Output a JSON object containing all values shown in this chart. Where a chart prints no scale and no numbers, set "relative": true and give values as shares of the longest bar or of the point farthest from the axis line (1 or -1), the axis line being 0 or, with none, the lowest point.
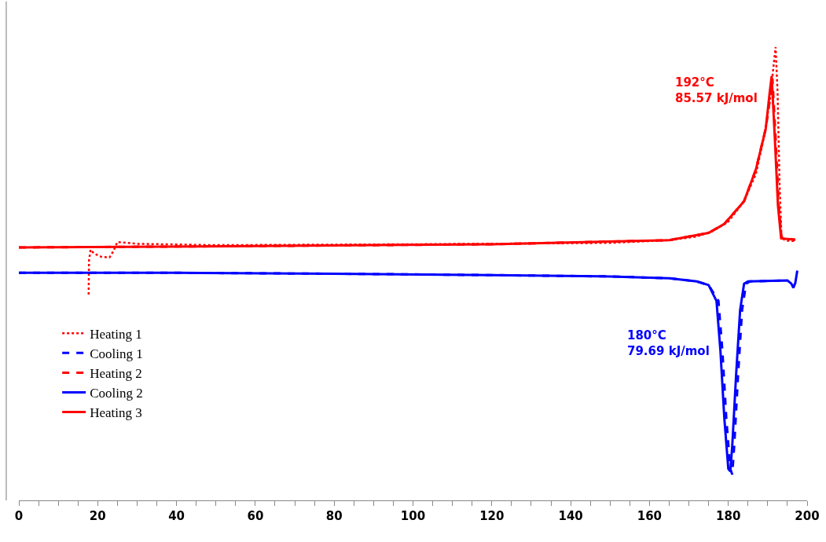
{
  "chart_data": {
    "type": "line",
    "relative": true,
    "xlim": [
      0,
      200
    ],
    "xticks": [
      0,
      {
        "value": 5,
        "label": null
      },
      {
        "value": 10,
        "label": null
      },
      {
        "value": 15,
        "label": null
      },
      20,
      {
        "value": 25,
        "label": null
      },
      {
        "value": 30,
        "label": null
      },
      {
        "value": 35,
        "label": null
      },
      40,
      {
        "value": 45,
        "label": null
      },
      {
        "value": 50,
        "label": null
      },
      {
        "value": 55,
        "label": null
      },
      60,
      {
        "value": 65,
        "label": null
      },
      {
        "value": 70,
        "label": null
      },
      {
        "value": 75,
        "label": null
      },
      80,
      {
        "value": 85,
        "label": null
      },
      {
        "value": 90,
        "label": null
      },
      {
        "value": 95,
        "label": null
      },
      100,
      {
        "value": 105,
        "label": null
      },
      {
        "value": 110,
        "label": null
      },
      {
        "value": 115,
        "label": null
      },
      120,
      {
        "value": 125,
        "label": null
      },
      {
        "value": 130,
        "label": null
      },
      {
        "value": 135,
        "label": null
      },
      140,
      {
        "value": 145,
        "label": null
      },
      {
        "value": 150,
        "label": null
      },
      {
        "value": 155,
        "label": null
      },
      160,
      {
        "value": 165,
        "label": null
      },
      {
        "value": 170,
        "label": null
      },
      {
        "value": 175,
        "label": null
      },
      180,
      {
        "value": 185,
        "label": null
      },
      {
        "value": 190,
        "label": null
      },
      {
        "value": 195,
        "label": null
      },
      200
    ],
    "tick_labels": "x",
    "grid": false,
    "legend": "bottom left",
    "marker": "none",
    "series": [
      {
        "name": "Heating 1",
        "color": "#ff0000",
        "line_style": "dotted",
        "x": [
          17.7,
          17.8,
          18.2,
          19,
          21,
          23,
          24,
          25,
          30,
          50,
          100,
          150,
          165,
          172,
          176,
          180,
          184,
          187,
          189,
          190.5,
          191.5,
          192,
          192.5,
          193,
          193.5,
          194.5,
          197
        ],
        "values": [
          0.454,
          0.53,
          0.553,
          0.545,
          0.537,
          0.536,
          0.55,
          0.57,
          0.566,
          0.563,
          0.565,
          0.568,
          0.574,
          0.582,
          0.594,
          0.615,
          0.66,
          0.72,
          0.8,
          0.88,
          0.96,
          1.0,
          0.9,
          0.7,
          0.58,
          0.573,
          0.572
        ]
      },
      {
        "name": "Cooling 1",
        "color": "#0000ff",
        "line_style": "dashed",
        "x": [
          0,
          40,
          80,
          120,
          150,
          165,
          172,
          175,
          177.5,
          178.5,
          179.5,
          180.5,
          181,
          181.5,
          182.5,
          183.5,
          184.5,
          185.5,
          195
        ],
        "values": [
          0.502,
          0.502,
          0.5,
          0.497,
          0.494,
          0.49,
          0.483,
          0.475,
          0.44,
          0.33,
          0.18,
          0.07,
          0.057,
          0.12,
          0.28,
          0.42,
          0.478,
          0.483,
          0.485
        ]
      },
      {
        "name": "Heating 2",
        "color": "#ff0000",
        "line_style": "dashed",
        "x": [
          0,
          60,
          120,
          165,
          175,
          179,
          184,
          187,
          189.5,
          190.8,
          191.2,
          192,
          192.8,
          193.5,
          197
        ],
        "values": [
          0.558,
          0.561,
          0.565,
          0.574,
          0.59,
          0.61,
          0.66,
          0.73,
          0.82,
          0.9,
          0.93,
          0.8,
          0.65,
          0.58,
          0.575
        ]
      },
      {
        "name": "Cooling 2",
        "color": "#0000ff",
        "line_style": "solid",
        "x": [
          0,
          40,
          80,
          120,
          150,
          165,
          172,
          175,
          177,
          178,
          179,
          180,
          180.5,
          181,
          182,
          183,
          184,
          185,
          195,
          196,
          196.5,
          197,
          197.5
        ],
        "values": [
          0.502,
          0.502,
          0.5,
          0.497,
          0.494,
          0.49,
          0.483,
          0.475,
          0.44,
          0.33,
          0.18,
          0.07,
          0.064,
          0.12,
          0.28,
          0.42,
          0.478,
          0.483,
          0.485,
          0.478,
          0.469,
          0.48,
          0.507
        ]
      },
      {
        "name": "Heating 3",
        "color": "#ff0000",
        "line_style": "solid",
        "x": [
          0,
          60,
          120,
          165,
          175,
          179,
          184,
          187,
          189.5,
          190.5,
          191,
          191.8,
          192.6,
          193.4,
          197
        ],
        "values": [
          0.558,
          0.561,
          0.565,
          0.574,
          0.59,
          0.61,
          0.66,
          0.73,
          0.82,
          0.9,
          0.936,
          0.8,
          0.65,
          0.578,
          0.575
        ]
      }
    ],
    "annotations": [
      {
        "text": "192°C\n85.57 kJ/mol",
        "x": 192,
        "y": 1.0
      },
      {
        "text": "180°C\n79.69 kJ/mol",
        "x": 178,
        "y": 0.33
      }
    ]
  }
}
